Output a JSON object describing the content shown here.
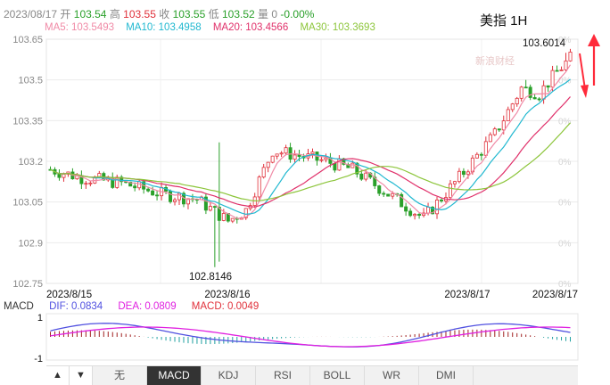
{
  "quote": {
    "datetime": "2023/08/17",
    "open_label": "开",
    "open": "103.54",
    "high_label": "高",
    "high": "103.55",
    "close_label": "收",
    "close": "103.55",
    "low_label": "低",
    "low": "103.52",
    "volume_label": "量",
    "volume": "0",
    "change": "-0.00%"
  },
  "symbol_title": "美指 1H",
  "watermark": "新浪财经",
  "ma_legend": [
    {
      "text": "MA5: 103.5493",
      "color": "#f08aa6"
    },
    {
      "text": "MA10: 103.4958",
      "color": "#20b8d0"
    },
    {
      "text": "MA20: 103.4566",
      "color": "#e0306a"
    },
    {
      "text": "MA30: 103.3693",
      "color": "#8cc53a"
    }
  ],
  "colors": {
    "up": "#e0303a",
    "down": "#2aa02a",
    "dif": "#5050e0",
    "dea": "#e020e0",
    "arrow": "#ff2a3a"
  },
  "chart_data": {
    "type": "candlestick",
    "ylim": [
      102.75,
      103.65
    ],
    "y_ticks": [
      "103.65",
      "103.5",
      "103.35",
      "103.2",
      "103.05",
      "102.9",
      "102.75"
    ],
    "pct_ticks": [
      "0%",
      "0%",
      "0%",
      "0%",
      "0%",
      "0%",
      "0%"
    ],
    "x_ticks": [
      "2023/8/15",
      "2023/8/16",
      "2023/8/17",
      "2023/8/17"
    ],
    "annotations": {
      "high": "103.6014",
      "low": "102.8146"
    },
    "macd": {
      "label": "MACD",
      "dif": "DIF: 0.0834",
      "dea": "DEA: 0.0809",
      "macd": "MACD: 0.0049",
      "y_ticks": [
        "1",
        "-1"
      ]
    }
  },
  "indicator_tabs": [
    "无",
    "MACD",
    "KDJ",
    "RSI",
    "BOLL",
    "WR",
    "DMI"
  ],
  "active_tab": "MACD",
  "nav": {
    "left": "▲",
    "right": "▼"
  }
}
